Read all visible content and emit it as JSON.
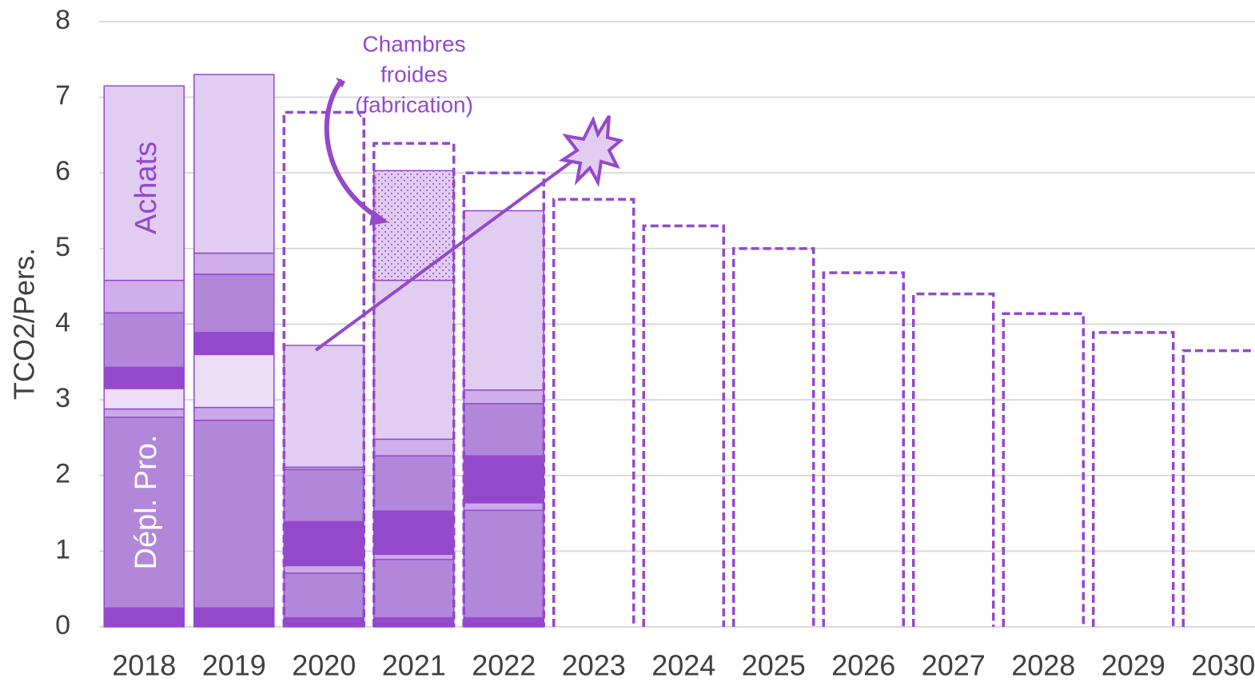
{
  "chart_data": {
    "type": "bar",
    "stacked": true,
    "y_label": "TCO2/Pers.",
    "categories": [
      "2018",
      "2019",
      "2020",
      "2021",
      "2022",
      "2023",
      "2024",
      "2025",
      "2026",
      "2027",
      "2028",
      "2029",
      "2030"
    ],
    "ylim": [
      0,
      8
    ],
    "yticks": [
      0,
      1,
      2,
      3,
      4,
      5,
      6,
      7,
      8
    ],
    "grid": true,
    "series": [
      {
        "color": "#9448cc",
        "values": [
          0.13,
          0.13,
          0.12,
          0.12,
          0.12,
          null,
          null,
          null,
          null,
          null,
          null,
          null,
          null
        ]
      },
      {
        "color": "#9448cc",
        "values": [
          0.12,
          0.12,
          null,
          null,
          null,
          null,
          null,
          null,
          null,
          null,
          null,
          null,
          null
        ]
      },
      {
        "color": "#b287da",
        "values": [
          2.52,
          2.48,
          0.59,
          0.77,
          1.42,
          null,
          null,
          null,
          null,
          null,
          null,
          null,
          null
        ]
      },
      {
        "color": "#cba8e9",
        "values": [
          0.11,
          0.17,
          0.1,
          0.07,
          0.1,
          null,
          null,
          null,
          null,
          null,
          null,
          null,
          null
        ]
      },
      {
        "color": "#ecdef7",
        "values": [
          0.27,
          0.7,
          null,
          null,
          null,
          null,
          null,
          null,
          null,
          null,
          null,
          null,
          null
        ]
      },
      {
        "color": "#9448cc",
        "values": [
          0.28,
          0.29,
          0.58,
          0.57,
          0.62,
          null,
          null,
          null,
          null,
          null,
          null,
          null,
          null
        ]
      },
      {
        "color": "#b287da",
        "values": [
          0.72,
          0.77,
          0.69,
          0.73,
          0.69,
          null,
          null,
          null,
          null,
          null,
          null,
          null,
          null
        ]
      },
      {
        "color": "#cfaeeb",
        "values": [
          0.43,
          0.28,
          0.03,
          0.22,
          0.18,
          null,
          null,
          null,
          null,
          null,
          null,
          null,
          null
        ]
      },
      {
        "color": "#e2cdf2",
        "values": [
          2.57,
          2.36,
          1.61,
          2.1,
          2.37,
          null,
          null,
          null,
          null,
          null,
          null,
          null,
          null
        ]
      },
      {
        "color": "#e2cdf2",
        "hatch": "dots",
        "values": [
          null,
          null,
          null,
          1.45,
          null,
          null,
          null,
          null,
          null,
          null,
          null,
          null,
          null
        ]
      }
    ],
    "target": {
      "color": "#9448cc",
      "dashed": true,
      "values": [
        null,
        null,
        6.8,
        6.39,
        6.0,
        5.65,
        5.3,
        5.0,
        4.68,
        4.4,
        4.14,
        3.89,
        3.65
      ]
    },
    "bar_labels": [
      "Achats",
      "Dépl. Pro."
    ],
    "annotation": [
      "Chambres",
      "froides",
      "(fabrication)"
    ]
  }
}
